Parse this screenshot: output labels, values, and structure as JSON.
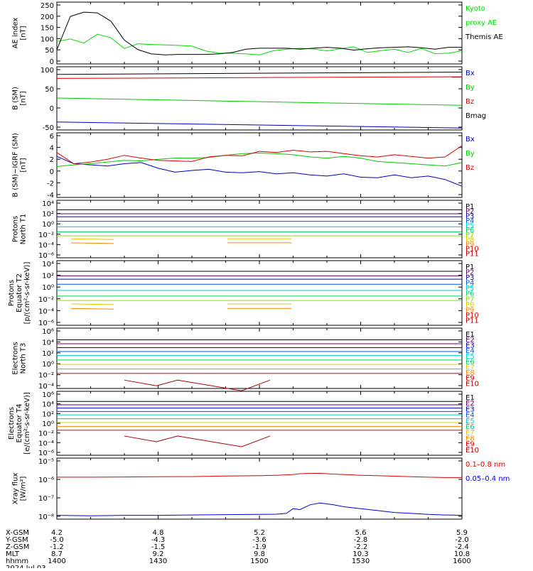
{
  "chart_data": [
    {
      "type": "line",
      "ylabel": "AE index\n[nT]",
      "yticks": [
        "250",
        "200",
        "150",
        "100",
        "50",
        "0"
      ],
      "ylim": [
        0,
        260
      ],
      "x": [
        1400,
        1404,
        1408,
        1412,
        1416,
        1420,
        1424,
        1428,
        1432,
        1436,
        1440,
        1444,
        1448,
        1452,
        1456,
        1500,
        1504,
        1508,
        1512,
        1516,
        1520,
        1524,
        1528,
        1532,
        1536,
        1540,
        1544,
        1548,
        1552,
        1556,
        1600
      ],
      "series": [
        {
          "name": "Kyoto proxy AE",
          "color": "#00dd00",
          "values": [
            95,
            105,
            88,
            125,
            110,
            65,
            85,
            82,
            80,
            78,
            75,
            55,
            45,
            45,
            42,
            38,
            55,
            62,
            66,
            63,
            55,
            64,
            72,
            48,
            56,
            62,
            48,
            65,
            43,
            45,
            55
          ]
        },
        {
          "name": "Themis AE",
          "color": "#000000",
          "values": [
            60,
            200,
            218,
            215,
            180,
            100,
            60,
            42,
            38,
            40,
            40,
            40,
            42,
            48,
            62,
            66,
            66,
            66,
            62,
            66,
            70,
            66,
            58,
            64,
            68,
            70,
            72,
            68,
            62,
            70,
            70
          ]
        }
      ]
    },
    {
      "type": "line",
      "ylabel": "B (SM)\n[nT]",
      "yticks": [
        "100",
        "50",
        "0",
        "-50"
      ],
      "ylim": [
        -60,
        130
      ],
      "x": [
        1400,
        1600
      ],
      "series": [
        {
          "name": "Bx",
          "color": "#0000bb",
          "values": [
            -36,
            -54
          ]
        },
        {
          "name": "By",
          "color": "#00cc00",
          "values": [
            36,
            14
          ]
        },
        {
          "name": "Bz",
          "color": "#dd0000",
          "values": [
            95,
            100
          ]
        },
        {
          "name": "Bmag",
          "color": "#000000",
          "values": [
            107,
            114
          ]
        }
      ]
    },
    {
      "type": "line",
      "ylabel": "B (SM)−IGRF (SM)\n[nT]",
      "yticks": [
        "6",
        "4",
        "2",
        "0",
        "-2",
        "-4"
      ],
      "ylim": [
        -5,
        6.5
      ],
      "x": [
        1400,
        1405,
        1410,
        1415,
        1420,
        1425,
        1430,
        1435,
        1440,
        1445,
        1450,
        1455,
        1500,
        1505,
        1510,
        1515,
        1520,
        1525,
        1530,
        1535,
        1540,
        1545,
        1550,
        1555,
        1600
      ],
      "series": [
        {
          "name": "Bx",
          "color": "#0000bb",
          "values": [
            2.3,
            1.0,
            0.8,
            0.6,
            1.0,
            1.2,
            0.2,
            -0.5,
            -0.2,
            0.0,
            -0.5,
            -0.6,
            -0.4,
            -0.8,
            -0.6,
            -1.0,
            -1.2,
            -0.8,
            -1.4,
            -1.5,
            -1.0,
            -1.5,
            -1.2,
            -1.8,
            -3.0
          ]
        },
        {
          "name": "By",
          "color": "#00cc00",
          "values": [
            0.5,
            0.8,
            1.0,
            1.3,
            1.6,
            1.5,
            1.8,
            2.0,
            2.0,
            2.1,
            2.5,
            2.8,
            2.9,
            2.8,
            2.6,
            2.2,
            2.0,
            2.3,
            2.0,
            1.4,
            1.2,
            1.0,
            0.8,
            0.6,
            1.2
          ]
        },
        {
          "name": "Bz",
          "color": "#dd0000",
          "values": [
            3.0,
            1.0,
            1.3,
            1.8,
            2.5,
            2.0,
            1.6,
            1.5,
            1.4,
            2.2,
            2.5,
            2.4,
            3.2,
            3.0,
            3.4,
            3.1,
            3.2,
            2.8,
            2.4,
            2.2,
            2.6,
            2.3,
            2.0,
            2.2,
            4.2
          ]
        }
      ]
    },
    {
      "type": "line",
      "ylabel": "Protons\nNorth T1",
      "yticks": [
        "10⁴",
        "10²",
        "10⁰",
        "10⁻²",
        "10⁻⁴",
        "10⁻⁶"
      ],
      "ylim": [
        -7,
        4.5
      ],
      "legend": [
        "P1",
        "P2",
        "P3",
        "P4",
        "P5",
        "P6",
        "P7",
        "P8",
        "P9",
        "P10",
        "P11"
      ]
    },
    {
      "type": "line",
      "ylabel": "Protons\nEquator T2\n[p/(cm²-s-sr-keV)]",
      "yticks": [
        "10⁴",
        "10²",
        "10⁰",
        "10⁻²",
        "10⁻⁴",
        "10⁻⁶"
      ],
      "ylim": [
        -7,
        4.5
      ],
      "legend": [
        "P1",
        "P2",
        "P3",
        "P4",
        "P5",
        "P6",
        "P7",
        "P8",
        "P9",
        "P10",
        "P11"
      ]
    },
    {
      "type": "line",
      "ylabel": "Electrons\nNorth T3",
      "yticks": [
        "10⁶",
        "10⁴",
        "10²",
        "10⁰",
        "10⁻²",
        "10⁻⁴"
      ],
      "ylim": [
        -4.5,
        6.3
      ],
      "legend": [
        "E1",
        "E2",
        "E3",
        "E4",
        "E5",
        "E6",
        "E7",
        "E8",
        "E9",
        "E10"
      ]
    },
    {
      "type": "line",
      "ylabel": "Electrons\nEquator T4\n[e/(cm²-s-sr-keV)]",
      "yticks": [
        "10⁶",
        "10⁴",
        "10²",
        "10⁰",
        "10⁻²",
        "10⁻⁴",
        "10⁻⁶"
      ],
      "ylim": [
        -7,
        6.3
      ],
      "legend": [
        "E1",
        "E2",
        "E3",
        "E4",
        "E5",
        "E6",
        "E7",
        "E8",
        "E9",
        "E10"
      ]
    },
    {
      "type": "line",
      "ylabel": "Xray flux\n[W/m²]",
      "yticks": [
        "10⁻⁵",
        "10⁻⁶",
        "10⁻⁷",
        "10⁻⁸"
      ],
      "ylim": [
        -8.2,
        -5
      ],
      "x": [
        1400,
        1410,
        1420,
        1430,
        1440,
        1450,
        1500,
        1505,
        1508,
        1510,
        1512,
        1515,
        1518,
        1520,
        1522,
        1525,
        1530,
        1535,
        1540,
        1545,
        1550,
        1555,
        1600
      ],
      "series": [
        {
          "name": "0.1–0.8 nm",
          "color": "#dd0000",
          "values": [
            -6.0,
            -6.0,
            -5.99,
            -5.98,
            -5.97,
            -5.94,
            -5.92,
            -5.9,
            -5.88,
            -5.86,
            -5.82,
            -5.8,
            -5.8,
            -5.82,
            -5.84,
            -5.86,
            -5.9,
            -5.92,
            -5.95,
            -5.98,
            -6.0,
            -6.02,
            -6.02
          ]
        },
        {
          "name": "0.05–0.4 nm",
          "color": "#0000dd",
          "values": [
            -8.0,
            -8.02,
            -8.0,
            -8.0,
            -7.98,
            -7.96,
            -7.95,
            -7.94,
            -7.9,
            -7.65,
            -7.7,
            -7.45,
            -7.35,
            -7.4,
            -7.45,
            -7.55,
            -7.65,
            -7.75,
            -7.85,
            -7.9,
            -7.95,
            -7.98,
            -8.0
          ]
        }
      ]
    }
  ],
  "panels": {
    "ae": {
      "ylabel": "AE index",
      "yunit": "[nT]",
      "ticks": [
        "250",
        "200",
        "150",
        "100",
        "50",
        "0"
      ],
      "legend": [
        {
          "label": "Kyoto",
          "color": "#00dd00"
        },
        {
          "label": "proxy AE",
          "color": "#00dd00"
        },
        {
          "label": "Themis AE",
          "color": "#000000"
        }
      ]
    },
    "bsm": {
      "ylabel": "B (SM)",
      "yunit": "[nT]",
      "ticks": [
        "100",
        "50",
        "0",
        "-50"
      ],
      "legend": [
        {
          "label": "Bx",
          "color": "#0000bb"
        },
        {
          "label": "By",
          "color": "#00cc00"
        },
        {
          "label": "Bz",
          "color": "#dd0000"
        },
        {
          "label": "Bmag",
          "color": "#000000"
        }
      ]
    },
    "bigrf": {
      "ylabel": "B (SM)−IGRF (SM)",
      "yunit": "[nT]",
      "ticks": [
        "6",
        "4",
        "2",
        "0",
        "-2",
        "-4"
      ],
      "legend": [
        {
          "label": "Bx",
          "color": "#0000bb"
        },
        {
          "label": "By",
          "color": "#00cc00"
        },
        {
          "label": "Bz",
          "color": "#dd0000"
        }
      ]
    },
    "pn": {
      "ylabel": "Protons",
      "ylabel2": "North T1",
      "ticks": [
        "10⁴",
        "10²",
        "10⁰",
        "10⁻²",
        "10⁻⁴",
        "10⁻⁶"
      ],
      "legend": [
        "P1",
        "P2",
        "P3",
        "P4",
        "P5",
        "P6",
        "P7",
        "P8",
        "P9",
        "P10",
        "P11"
      ]
    },
    "pe": {
      "ylabel": "Protons",
      "ylabel2": "Equator T2",
      "yunit": "[p/(cm²-s-sr-keV)]",
      "ticks": [
        "10⁴",
        "10²",
        "10⁰",
        "10⁻²",
        "10⁻⁴",
        "10⁻⁶"
      ],
      "legend": [
        "P1",
        "P2",
        "P3",
        "P4",
        "P5",
        "P6",
        "P7",
        "P8",
        "P9",
        "P10",
        "P11"
      ]
    },
    "en": {
      "ylabel": "Electrons",
      "ylabel2": "North T3",
      "ticks": [
        "10⁶",
        "10⁴",
        "10²",
        "10⁰",
        "10⁻²",
        "10⁻⁴"
      ],
      "legend": [
        "E1",
        "E2",
        "E3",
        "E4",
        "E5",
        "E6",
        "E7",
        "E8",
        "E9",
        "E10"
      ]
    },
    "ee": {
      "ylabel": "Electrons",
      "ylabel2": "Equator T4",
      "yunit": "[e/(cm²-s-sr-keV)]",
      "ticks": [
        "10⁶",
        "10⁴",
        "10²",
        "10⁰",
        "10⁻²",
        "10⁻⁴",
        "10⁻⁶"
      ],
      "legend": [
        "E1",
        "E2",
        "E3",
        "E4",
        "E5",
        "E6",
        "E7",
        "E8",
        "E9",
        "E10"
      ]
    },
    "xray": {
      "ylabel": "Xray flux",
      "yunit": "[W/m²]",
      "ticks": [
        "10⁻⁵",
        "10⁻⁶",
        "10⁻⁷",
        "10⁻⁸"
      ],
      "legend": [
        {
          "label": "0.1–0.8 nm",
          "color": "#dd0000"
        },
        {
          "label": "0.05–0.4 nm",
          "color": "#0000dd"
        }
      ]
    }
  },
  "channel_colors_p": [
    "#000000",
    "#5a0060",
    "#0000cc",
    "#0050ff",
    "#00cccc",
    "#00cc66",
    "#88dd00",
    "#ddcc00",
    "#ff8800",
    "#dd0000",
    "#aa0000"
  ],
  "channel_colors_e": [
    "#000000",
    "#5a0060",
    "#0000cc",
    "#0050ff",
    "#00cccc",
    "#00cc66",
    "#ddcc00",
    "#ff8800",
    "#dd0000",
    "#aa0000"
  ],
  "axis": {
    "rows": [
      {
        "label": "X-GSM",
        "values": [
          "4.2",
          "4.8",
          "5.2",
          "5.6",
          "5.9"
        ]
      },
      {
        "label": "Y-GSM",
        "values": [
          "-5.0",
          "-4.3",
          "-3.6",
          "-2.8",
          "-2.0"
        ]
      },
      {
        "label": "Z-GSM",
        "values": [
          "-1.2",
          "-1.5",
          "-1.9",
          "-2.2",
          "-2.4"
        ]
      },
      {
        "label": "MLT",
        "values": [
          "8.7",
          "9.2",
          "9.8",
          "10.3",
          "10.8"
        ]
      },
      {
        "label": "hhmm",
        "values": [
          "1400",
          "1430",
          "1500",
          "1530",
          "1600"
        ]
      }
    ],
    "date": "2024 Jul 03"
  }
}
